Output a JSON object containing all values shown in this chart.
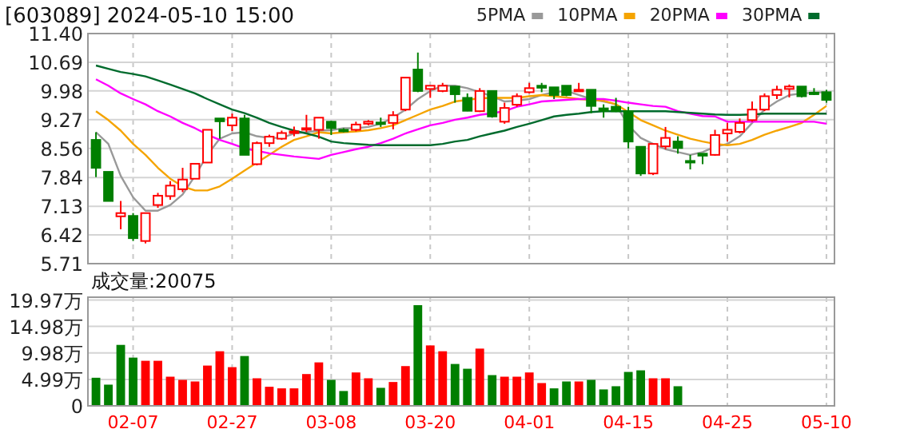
{
  "chart_data": [
    {
      "type": "candlestick",
      "title": "[603089] 2024-05-10 15:00",
      "categories": [
        null,
        null,
        null,
        null,
        null,
        null,
        null,
        null,
        null,
        null,
        null,
        null,
        null,
        null,
        null,
        null,
        null,
        null,
        null,
        null,
        null,
        null,
        null,
        null,
        null,
        null,
        null,
        null,
        null,
        null,
        null,
        null,
        null,
        null,
        null,
        null,
        null,
        null,
        null,
        null,
        null,
        null,
        null,
        null,
        null,
        null,
        null,
        null,
        null,
        null,
        null,
        null,
        null,
        null,
        null,
        null,
        null,
        null,
        null,
        null
      ],
      "ohlc": [
        [
          8.77,
          8.96,
          7.85,
          8.08
        ],
        [
          7.98,
          7.98,
          7.26,
          7.26
        ],
        [
          6.88,
          7.26,
          6.56,
          6.96
        ],
        [
          6.89,
          6.96,
          6.27,
          6.34
        ],
        [
          6.27,
          6.96,
          6.21,
          6.96
        ],
        [
          7.16,
          7.46,
          7.09,
          7.39
        ],
        [
          7.38,
          7.75,
          7.29,
          7.64
        ],
        [
          7.55,
          8.08,
          7.48,
          7.79
        ],
        [
          7.81,
          8.18,
          7.81,
          8.18
        ],
        [
          8.21,
          9.02,
          8.21,
          9.02
        ],
        [
          9.3,
          9.3,
          8.8,
          9.23
        ],
        [
          9.13,
          9.42,
          8.99,
          9.32
        ],
        [
          9.3,
          9.39,
          8.4,
          8.4
        ],
        [
          8.17,
          8.73,
          8.14,
          8.69
        ],
        [
          8.69,
          8.9,
          8.6,
          8.85
        ],
        [
          8.8,
          9.0,
          8.77,
          8.94
        ],
        [
          8.94,
          9.1,
          8.86,
          8.98
        ],
        [
          9.03,
          9.39,
          8.96,
          9.06
        ],
        [
          9.02,
          9.32,
          8.8,
          9.32
        ],
        [
          9.22,
          9.24,
          8.89,
          9.06
        ],
        [
          9.02,
          9.06,
          8.96,
          8.99
        ],
        [
          9.02,
          9.22,
          8.98,
          9.15
        ],
        [
          9.17,
          9.26,
          9.13,
          9.22
        ],
        [
          9.2,
          9.32,
          9.09,
          9.19
        ],
        [
          9.19,
          9.48,
          9.03,
          9.38
        ],
        [
          9.52,
          10.31,
          9.48,
          10.31
        ],
        [
          10.51,
          10.93,
          9.95,
          9.98
        ],
        [
          10.03,
          10.11,
          9.81,
          10.11
        ],
        [
          9.98,
          10.18,
          9.95,
          10.11
        ],
        [
          10.09,
          10.09,
          9.69,
          9.9
        ],
        [
          9.81,
          9.92,
          9.48,
          9.49
        ],
        [
          9.48,
          10.05,
          9.46,
          9.98
        ],
        [
          9.98,
          9.98,
          9.32,
          9.35
        ],
        [
          9.22,
          9.69,
          9.17,
          9.56
        ],
        [
          9.64,
          9.92,
          9.59,
          9.85
        ],
        [
          9.95,
          10.18,
          9.92,
          10.05
        ],
        [
          10.11,
          10.18,
          9.95,
          10.06
        ],
        [
          10.07,
          10.07,
          9.78,
          9.88
        ],
        [
          10.11,
          10.11,
          9.85,
          9.88
        ],
        [
          9.98,
          10.18,
          9.98,
          10.01
        ],
        [
          10.01,
          10.01,
          9.43,
          9.61
        ],
        [
          9.55,
          9.65,
          9.32,
          9.49
        ],
        [
          9.59,
          9.81,
          9.46,
          9.48
        ],
        [
          9.48,
          9.59,
          8.56,
          8.73
        ],
        [
          8.6,
          8.6,
          7.88,
          7.94
        ],
        [
          7.94,
          8.67,
          7.9,
          8.67
        ],
        [
          8.61,
          9.09,
          8.54,
          8.82
        ],
        [
          8.73,
          8.86,
          8.43,
          8.57
        ],
        [
          8.25,
          8.4,
          8.04,
          8.22
        ],
        [
          8.43,
          8.43,
          8.17,
          8.38
        ],
        [
          8.4,
          9.02,
          8.38,
          8.89
        ],
        [
          8.93,
          9.19,
          8.73,
          9.02
        ],
        [
          8.97,
          9.3,
          8.93,
          9.19
        ],
        [
          9.26,
          9.72,
          9.22,
          9.52
        ],
        [
          9.52,
          9.92,
          9.48,
          9.85
        ],
        [
          9.88,
          10.11,
          9.78,
          10.01
        ],
        [
          10.03,
          10.14,
          9.82,
          10.09
        ],
        [
          10.09,
          10.09,
          9.82,
          9.85
        ],
        [
          9.94,
          10.05,
          9.88,
          9.92
        ],
        [
          9.95,
          10.01,
          9.69,
          9.76
        ]
      ],
      "colors": [
        "#007f00",
        "#007f00",
        "#ff0000",
        "#007f00",
        "#ff0000",
        "#ff0000",
        "#ff0000",
        "#ff0000",
        "#ff0000",
        "#ff0000",
        "#007f00",
        "#ff0000",
        "#007f00",
        "#ff0000",
        "#ff0000",
        "#ff0000",
        "#ff0000",
        "#ff0000",
        "#ff0000",
        "#007f00",
        "#007f00",
        "#ff0000",
        "#ff0000",
        "#007f00",
        "#ff0000",
        "#ff0000",
        "#007f00",
        "#ff0000",
        "#ff0000",
        "#007f00",
        "#007f00",
        "#ff0000",
        "#007f00",
        "#ff0000",
        "#ff0000",
        "#ff0000",
        "#007f00",
        "#007f00",
        "#007f00",
        "#ff0000",
        "#007f00",
        "#007f00",
        "#007f00",
        "#007f00",
        "#007f00",
        "#ff0000",
        "#ff0000",
        "#007f00",
        "#007f00",
        "#007f00",
        "#ff0000",
        "#ff0000",
        "#ff0000",
        "#ff0000",
        "#ff0000",
        "#ff0000",
        "#ff0000",
        "#007f00",
        "#007f00",
        "#007f00"
      ],
      "series": [
        {
          "name": "5PMA",
          "type": "line",
          "color": "#999999",
          "values": [
            8.96,
            8.67,
            7.88,
            7.35,
            7.02,
            7.02,
            7.16,
            7.42,
            7.88,
            8.4,
            8.8,
            8.93,
            8.96,
            8.86,
            8.82,
            8.82,
            8.93,
            8.96,
            9.0,
            9.01,
            9.06,
            9.06,
            9.09,
            9.17,
            9.32,
            9.52,
            9.78,
            9.98,
            10.11,
            10.11,
            10.05,
            9.95,
            9.85,
            9.72,
            9.74,
            9.78,
            9.88,
            9.95,
            9.98,
            9.88,
            9.78,
            9.72,
            9.65,
            9.13,
            8.82,
            8.67,
            8.54,
            8.47,
            8.4,
            8.47,
            8.6,
            8.67,
            8.86,
            9.19,
            9.52,
            9.72,
            9.88,
            9.92,
            9.94,
            9.95
          ]
        },
        {
          "name": "10PMA",
          "type": "line",
          "color": "#f5a400",
          "values": [
            9.48,
            9.26,
            9.0,
            8.67,
            8.4,
            8.08,
            7.81,
            7.62,
            7.52,
            7.52,
            7.62,
            7.81,
            8.01,
            8.21,
            8.4,
            8.6,
            8.77,
            8.86,
            8.96,
            8.93,
            8.96,
            8.98,
            9.01,
            9.06,
            9.13,
            9.26,
            9.39,
            9.52,
            9.61,
            9.72,
            9.76,
            9.8,
            9.81,
            9.81,
            9.81,
            9.85,
            9.88,
            9.85,
            9.82,
            9.78,
            9.76,
            9.74,
            9.65,
            9.46,
            9.26,
            9.13,
            9.0,
            8.9,
            8.8,
            8.73,
            8.67,
            8.64,
            8.67,
            8.77,
            8.9,
            9.0,
            9.09,
            9.19,
            9.39,
            9.61
          ]
        },
        {
          "name": "20PMA",
          "type": "line",
          "color": "#ff00ff",
          "values": [
            10.27,
            10.11,
            9.92,
            9.78,
            9.65,
            9.48,
            9.35,
            9.19,
            9.06,
            8.9,
            8.77,
            8.67,
            8.56,
            8.5,
            8.44,
            8.4,
            8.36,
            8.33,
            8.3,
            8.4,
            8.47,
            8.54,
            8.6,
            8.69,
            8.8,
            8.93,
            9.03,
            9.13,
            9.19,
            9.27,
            9.32,
            9.39,
            9.43,
            9.48,
            9.59,
            9.65,
            9.72,
            9.74,
            9.76,
            9.78,
            9.78,
            9.78,
            9.74,
            9.69,
            9.65,
            9.61,
            9.59,
            9.48,
            9.42,
            9.36,
            9.35,
            9.22,
            9.22,
            9.22,
            9.22,
            9.22,
            9.22,
            9.22,
            9.22,
            9.17
          ]
        },
        {
          "name": "30PMA",
          "type": "line",
          "color": "#006b2d",
          "values": [
            10.61,
            10.53,
            10.45,
            10.4,
            10.34,
            10.24,
            10.14,
            10.03,
            9.92,
            9.78,
            9.65,
            9.52,
            9.43,
            9.32,
            9.19,
            9.09,
            9.0,
            8.93,
            8.85,
            8.73,
            8.69,
            8.67,
            8.65,
            8.64,
            8.64,
            8.64,
            8.64,
            8.64,
            8.67,
            8.73,
            8.77,
            8.86,
            8.93,
            9.0,
            9.09,
            9.17,
            9.26,
            9.35,
            9.39,
            9.42,
            9.46,
            9.48,
            9.48,
            9.48,
            9.48,
            9.48,
            9.48,
            9.46,
            9.44,
            9.42,
            9.4,
            9.39,
            9.39,
            9.4,
            9.42,
            9.42,
            9.42,
            9.42,
            9.42,
            9.42
          ]
        }
      ],
      "ylim": [
        5.71,
        11.4
      ],
      "yticks": [
        5.71,
        6.42,
        7.13,
        7.84,
        8.56,
        9.27,
        9.98,
        10.69,
        {
          "value": 11.4,
          "label": "11.40"
        }
      ],
      "grid": true,
      "legend": "top right",
      "tick_labels": "y"
    },
    {
      "type": "bar",
      "title": "成交量:20075",
      "categories": [
        null,
        null,
        null,
        "02-07",
        null,
        null,
        null,
        null,
        null,
        null,
        null,
        "02-27",
        null,
        null,
        null,
        null,
        null,
        null,
        null,
        "03-08",
        null,
        null,
        null,
        null,
        null,
        null,
        null,
        "03-20",
        null,
        null,
        null,
        null,
        null,
        null,
        null,
        "04-01",
        null,
        null,
        null,
        null,
        null,
        null,
        null,
        "04-15",
        null,
        null,
        null,
        null,
        null,
        null,
        null,
        "04-25",
        null,
        null,
        null,
        null,
        null,
        null,
        null,
        "05-10"
      ],
      "values": [
        5.3,
        4.0,
        11.5,
        9.1,
        8.5,
        8.5,
        5.5,
        4.9,
        4.6,
        7.6,
        10.3,
        7.3,
        9.4,
        5.2,
        3.6,
        3.3,
        3.3,
        6.0,
        8.2,
        4.9,
        2.8,
        6.3,
        5.2,
        3.4,
        4.5,
        7.5,
        19.0,
        11.4,
        10.3,
        7.9,
        7.0,
        10.8,
        5.8,
        5.5,
        5.5,
        6.3,
        4.3,
        3.3,
        4.6,
        4.6,
        4.9,
        3.1,
        3.7,
        6.4,
        6.7,
        5.2,
        5.2,
        3.7,
        null,
        null,
        null,
        null,
        null,
        null,
        null,
        null,
        null,
        null,
        null,
        null
      ],
      "colors": [
        "#007f00",
        "#007f00",
        "#007f00",
        "#007f00",
        "#ff0000",
        "#ff0000",
        "#ff0000",
        "#ff0000",
        "#ff0000",
        "#ff0000",
        "#ff0000",
        "#ff0000",
        "#007f00",
        "#ff0000",
        "#ff0000",
        "#ff0000",
        "#ff0000",
        "#ff0000",
        "#ff0000",
        "#007f00",
        "#007f00",
        "#ff0000",
        "#ff0000",
        "#007f00",
        "#ff0000",
        "#ff0000",
        "#007f00",
        "#ff0000",
        "#ff0000",
        "#007f00",
        "#007f00",
        "#ff0000",
        "#007f00",
        "#ff0000",
        "#ff0000",
        "#ff0000",
        "#ff0000",
        "#007f00",
        "#007f00",
        "#ff0000",
        "#007f00",
        "#007f00",
        "#007f00",
        "#007f00",
        "#007f00",
        "#ff0000",
        "#ff0000",
        "#007f00",
        null,
        null,
        null,
        null,
        null,
        null,
        null,
        null,
        null,
        null,
        null,
        null
      ],
      "ylim": [
        0,
        20.5
      ],
      "yticks": [
        0,
        {
          "value": 4.99,
          "label": "4.99万"
        },
        {
          "value": 9.98,
          "label": "9.98万"
        },
        {
          "value": 14.98,
          "label": "14.98万"
        },
        {
          "value": 19.97,
          "label": "19.97万"
        }
      ],
      "grid": true
    }
  ]
}
